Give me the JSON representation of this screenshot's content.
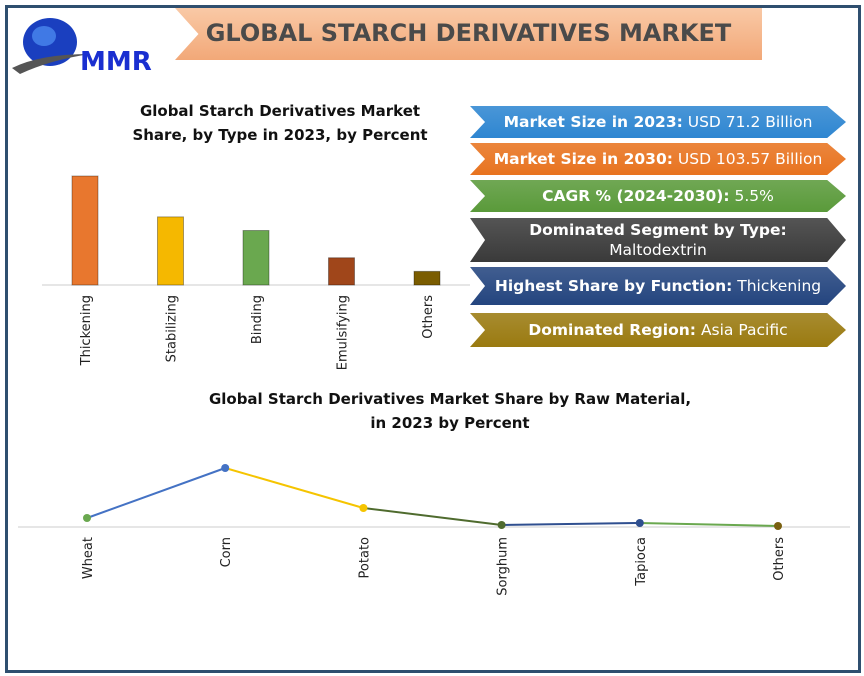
{
  "header": {
    "title": "GLOBAL STARCH DERIVATIVES MARKET",
    "logo_text": "MMR"
  },
  "info": [
    {
      "label": "Market Size in 2023:",
      "value": "USD 71.2 Billion",
      "color": "#2e86d1"
    },
    {
      "label": "Market Size in 2030:",
      "value": "USD 103.57 Billion",
      "color": "#e8731f"
    },
    {
      "label": "CAGR % (2024-2030):",
      "value": "5.5%",
      "color": "#5a9a3a"
    },
    {
      "label": "Dominated Segment by Type:",
      "value": "Maltodextrin",
      "color": "#3a3a3a"
    },
    {
      "label": "Highest Share by Function:",
      "value": "Thickening",
      "color": "#24457f"
    },
    {
      "label": "Dominated Region:",
      "value": "Asia Pacific",
      "color": "#9a7a10"
    }
  ],
  "chart_data": [
    {
      "type": "bar",
      "title": "Global Starch Derivatives Market Share, by Type in 2023, by Percent",
      "title_lines": [
        "Global Starch Derivatives Market",
        "Share, by Type in 2023, by Percent"
      ],
      "categories": [
        "Thickening",
        "Stabilizing",
        "Binding",
        "Emulsifying",
        "Others"
      ],
      "values": [
        40,
        25,
        20,
        10,
        5
      ],
      "colors": [
        "#e8772e",
        "#f5b800",
        "#6aa84f",
        "#a0461a",
        "#7a5c00"
      ],
      "grid": false
    },
    {
      "type": "line",
      "title": "Global Starch Derivatives Market Share by Raw Material, in 2023 by Percent",
      "title_lines": [
        "Global Starch Derivatives Market Share by Raw Material,",
        "in 2023 by Percent"
      ],
      "categories": [
        "Wheat",
        "Corn",
        "Potato",
        "Sorghum",
        "Tapioca",
        "Others"
      ],
      "values": [
        9,
        59,
        19,
        2,
        4,
        1
      ],
      "point_colors": [
        "#6aa84f",
        "#4472c4",
        "#f5c400",
        "#4f6b2e",
        "#2f4f8f",
        "#7a6010"
      ],
      "segment_colors": [
        "#4472c4",
        "#f5c400",
        "#4f6b2e",
        "#2f4f8f",
        "#6aa84f"
      ],
      "grid": false
    }
  ]
}
